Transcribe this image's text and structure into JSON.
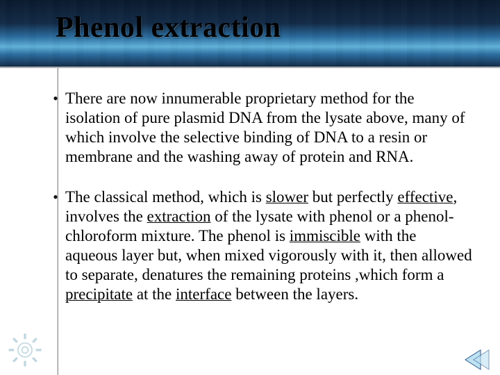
{
  "slide": {
    "title": "Phenol extraction",
    "bullets": [
      {
        "segments": [
          {
            "t": "There are now innumerable proprietary method for the isolation of pure plasmid DNA from the lysate above, many of which involve the selective binding of DNA to a resin or membrane and the washing away of protein and RNA.",
            "u": false
          }
        ]
      },
      {
        "segments": [
          {
            "t": "The classical method, which is ",
            "u": false
          },
          {
            "t": "slower",
            "u": true
          },
          {
            "t": " but perfectly ",
            "u": false
          },
          {
            "t": "effective",
            "u": true
          },
          {
            "t": ", involves the ",
            "u": false
          },
          {
            "t": "extraction",
            "u": true
          },
          {
            "t": " of the lysate with phenol or a phenol-chloroform mixture. The phenol is ",
            "u": false
          },
          {
            "t": "immiscible",
            "u": true
          },
          {
            "t": " with the aqueous layer but, when mixed vigorously with it, then allowed to separate, denatures the remaining proteins ,which form a ",
            "u": false
          },
          {
            "t": "precipitate",
            "u": true
          },
          {
            "t": " at the ",
            "u": false
          },
          {
            "t": "interface",
            "u": true
          },
          {
            "t": " between the layers.",
            "u": false
          }
        ]
      }
    ]
  },
  "style": {
    "header_gradient": [
      "#0a1a2e",
      "#132b47",
      "#2a6b9c",
      "#60b0d8"
    ],
    "title_color": "#000000",
    "title_fontsize": 42,
    "body_fontsize": 23,
    "body_color": "#000000",
    "rule_color": "#cfd2d4",
    "background": "#ffffff",
    "gear_color": "#8eb8c8",
    "arrow_fill": "#bfe2f2",
    "arrow_stroke": "#2c5a8a"
  },
  "icons": {
    "gear": "gear-icon",
    "prev": "prev-arrow-icon"
  }
}
